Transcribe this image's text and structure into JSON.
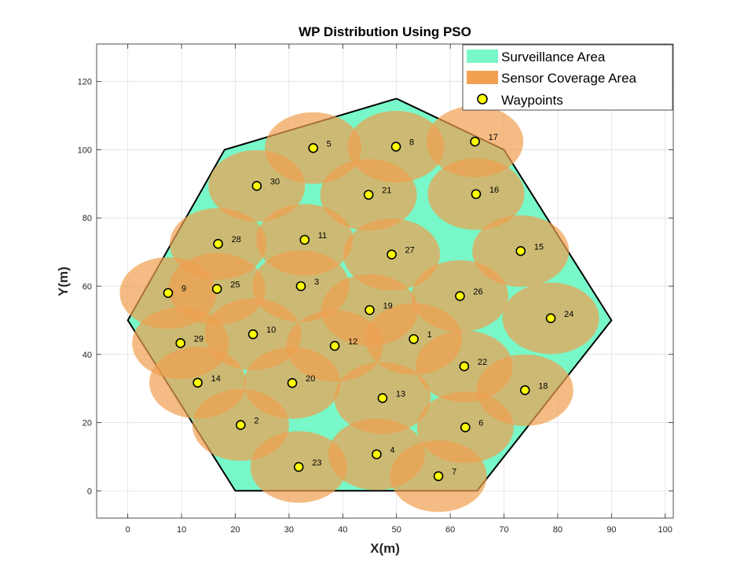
{
  "chart_data": {
    "type": "scatter",
    "title": "WP Distribution Using PSO",
    "xlabel": "X(m)",
    "ylabel": "Y(m)",
    "xlim": [
      -5.8,
      101.5
    ],
    "ylim": [
      -8,
      131
    ],
    "xticks": [
      0,
      10,
      20,
      30,
      40,
      50,
      60,
      70,
      80,
      90,
      100
    ],
    "yticks": [
      0,
      20,
      40,
      60,
      80,
      100,
      120
    ],
    "grid": true,
    "legend_position": "top-right",
    "legend": [
      {
        "label": "Surveillance Area",
        "swatch": "patch",
        "color": "#78F8C8"
      },
      {
        "label": "Sensor Coverage Area",
        "swatch": "patch",
        "color": "#F0A050"
      },
      {
        "label": "Waypoints",
        "swatch": "marker",
        "color": "#FFFF00"
      }
    ],
    "surveillance_area": [
      [
        0,
        50
      ],
      [
        18,
        100
      ],
      [
        50,
        115
      ],
      [
        70,
        100
      ],
      [
        90,
        50
      ],
      [
        65,
        0
      ],
      [
        20,
        0
      ]
    ],
    "sensor_radius": [
      9,
      10.5
    ],
    "waypoints": [
      {
        "id": "1",
        "x": 53.2,
        "y": 44.5
      },
      {
        "id": "2",
        "x": 21.0,
        "y": 19.3
      },
      {
        "id": "3",
        "x": 32.2,
        "y": 60.0
      },
      {
        "id": "4",
        "x": 46.3,
        "y": 10.7
      },
      {
        "id": "5",
        "x": 34.5,
        "y": 100.5
      },
      {
        "id": "6",
        "x": 62.8,
        "y": 18.6
      },
      {
        "id": "7",
        "x": 57.8,
        "y": 4.3
      },
      {
        "id": "8",
        "x": 49.9,
        "y": 100.9
      },
      {
        "id": "9",
        "x": 7.5,
        "y": 58.0
      },
      {
        "id": "10",
        "x": 23.3,
        "y": 45.9
      },
      {
        "id": "11",
        "x": 32.9,
        "y": 73.6
      },
      {
        "id": "12",
        "x": 38.5,
        "y": 42.5
      },
      {
        "id": "13",
        "x": 47.4,
        "y": 27.2
      },
      {
        "id": "14",
        "x": 13.0,
        "y": 31.7
      },
      {
        "id": "15",
        "x": 73.1,
        "y": 70.3
      },
      {
        "id": "16",
        "x": 64.8,
        "y": 87.0
      },
      {
        "id": "17",
        "x": 64.6,
        "y": 102.4
      },
      {
        "id": "18",
        "x": 73.9,
        "y": 29.5
      },
      {
        "id": "19",
        "x": 45.0,
        "y": 53.0
      },
      {
        "id": "20",
        "x": 30.6,
        "y": 31.6
      },
      {
        "id": "21",
        "x": 44.8,
        "y": 86.8
      },
      {
        "id": "22",
        "x": 62.6,
        "y": 36.5
      },
      {
        "id": "23",
        "x": 31.8,
        "y": 7.0
      },
      {
        "id": "24",
        "x": 78.7,
        "y": 50.6
      },
      {
        "id": "25",
        "x": 16.6,
        "y": 59.2
      },
      {
        "id": "26",
        "x": 61.8,
        "y": 57.1
      },
      {
        "id": "27",
        "x": 49.1,
        "y": 69.3
      },
      {
        "id": "28",
        "x": 16.8,
        "y": 72.4
      },
      {
        "id": "29",
        "x": 9.8,
        "y": 43.3
      },
      {
        "id": "30",
        "x": 24.0,
        "y": 89.4
      }
    ]
  }
}
